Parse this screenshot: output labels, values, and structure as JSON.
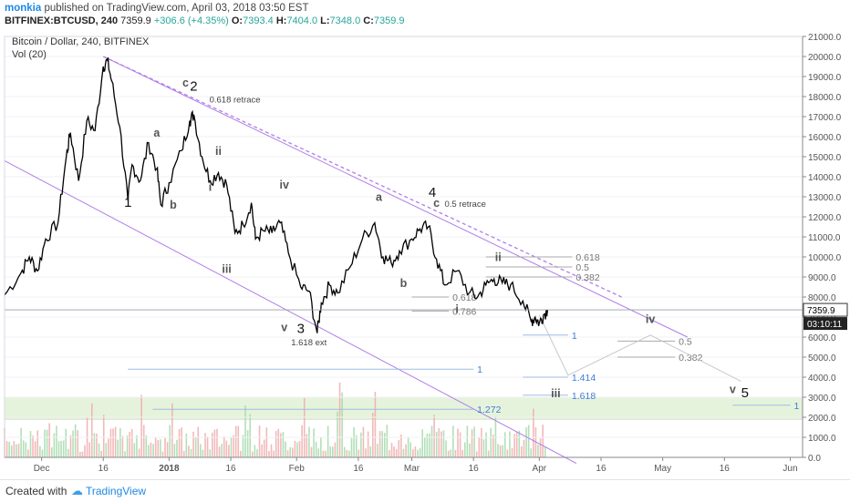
{
  "header": {
    "author": "monkia",
    "published": "published on TradingView.com, April 03, 2018 03:50 EST",
    "symbol": "BITFINEX:BTCUSD, 240",
    "last": "7359.9",
    "change": "+306.6 (+4.35%)",
    "o_label": "O:",
    "o": "7393.4",
    "h_label": "H:",
    "h": "7404.0",
    "l_label": "L:",
    "l": "7348.0",
    "c_label": "C:",
    "c": "7359.9"
  },
  "footer": {
    "created_with": "Created with",
    "brand": "TradingView"
  },
  "chart_data": {
    "type": "line",
    "title": "Bitcoin / Dollar, 240, BITFINEX",
    "subtitle": "Vol (20)",
    "ylim": [
      0,
      21000
    ],
    "yticks": [
      0,
      1000,
      2000,
      3000,
      4000,
      5000,
      6000,
      7000,
      8000,
      9000,
      10000,
      11000,
      12000,
      13000,
      14000,
      15000,
      16000,
      17000,
      18000,
      19000,
      20000,
      21000
    ],
    "ytick_labels": [
      "0.0",
      "1000.0",
      "2000.0",
      "3000.0",
      "4000.0",
      "5000.0",
      "6000.0",
      "7000.0",
      "8000.0",
      "9000.0",
      "10000.0",
      "11000.0",
      "12000.0",
      "13000.0",
      "14000.0",
      "15000.0",
      "16000.0",
      "17000.0",
      "18000.0",
      "19000.0",
      "20000.0",
      "21000.0"
    ],
    "xlim": [
      "2017-11-22",
      "2018-06-04"
    ],
    "xticks": [
      {
        "date": "2017-12-01",
        "label": "Dec",
        "bold": false
      },
      {
        "date": "2017-12-16",
        "label": "16",
        "bold": false
      },
      {
        "date": "2018-01-01",
        "label": "2018",
        "bold": true
      },
      {
        "date": "2018-01-16",
        "label": "16",
        "bold": false
      },
      {
        "date": "2018-02-01",
        "label": "Feb",
        "bold": false
      },
      {
        "date": "2018-02-16",
        "label": "16",
        "bold": false
      },
      {
        "date": "2018-03-01",
        "label": "Mar",
        "bold": false
      },
      {
        "date": "2018-03-16",
        "label": "16",
        "bold": false
      },
      {
        "date": "2018-04-01",
        "label": "Apr",
        "bold": false
      },
      {
        "date": "2018-04-16",
        "label": "16",
        "bold": false
      },
      {
        "date": "2018-05-01",
        "label": "May",
        "bold": false
      },
      {
        "date": "2018-05-16",
        "label": "16",
        "bold": false
      },
      {
        "date": "2018-06-01",
        "label": "Jun",
        "bold": false
      }
    ],
    "last_price": 7359.9,
    "last_price_label": "7359.9",
    "countdown_label": "03:10:11",
    "colors": {
      "price": "#000000",
      "channel": "#b07ee8",
      "fib": "#9e9e9e",
      "fib_blue": "#3d7dd8",
      "zone": "#e6f3dc",
      "vol_up": "#9fd8a6",
      "vol_down": "#f0a8a8"
    },
    "series": [
      {
        "points": [
          [
            "2017-11-22",
            8100
          ],
          [
            "2017-11-26",
            9200
          ],
          [
            "2017-11-28",
            10000
          ],
          [
            "2017-11-30",
            9300
          ],
          [
            "2017-12-02",
            10900
          ],
          [
            "2017-12-05",
            11700
          ],
          [
            "2017-12-07",
            15000
          ],
          [
            "2017-12-08",
            16200
          ],
          [
            "2017-12-10",
            13800
          ],
          [
            "2017-12-12",
            16800
          ],
          [
            "2017-12-14",
            16300
          ],
          [
            "2017-12-16",
            19500
          ],
          [
            "2017-12-17",
            19800
          ],
          [
            "2017-12-18",
            18800
          ],
          [
            "2017-12-20",
            16500
          ],
          [
            "2017-12-22",
            12800
          ],
          [
            "2017-12-23",
            14600
          ],
          [
            "2017-12-25",
            13800
          ],
          [
            "2017-12-27",
            15700
          ],
          [
            "2017-12-29",
            14400
          ],
          [
            "2017-12-30",
            12600
          ],
          [
            "2018-01-01",
            13700
          ],
          [
            "2018-01-04",
            15300
          ],
          [
            "2018-01-06",
            16800
          ],
          [
            "2018-01-07",
            17100
          ],
          [
            "2018-01-09",
            15000
          ],
          [
            "2018-01-11",
            13800
          ],
          [
            "2018-01-13",
            14200
          ],
          [
            "2018-01-15",
            13600
          ],
          [
            "2018-01-17",
            11200
          ],
          [
            "2018-01-19",
            11600
          ],
          [
            "2018-01-21",
            12700
          ],
          [
            "2018-01-22",
            10900
          ],
          [
            "2018-01-24",
            11300
          ],
          [
            "2018-01-26",
            11200
          ],
          [
            "2018-01-28",
            11700
          ],
          [
            "2018-01-30",
            10200
          ],
          [
            "2018-02-02",
            8500
          ],
          [
            "2018-02-04",
            8300
          ],
          [
            "2018-02-06",
            6200
          ],
          [
            "2018-02-07",
            7700
          ],
          [
            "2018-02-09",
            8600
          ],
          [
            "2018-02-11",
            8200
          ],
          [
            "2018-02-14",
            9500
          ],
          [
            "2018-02-17",
            10900
          ],
          [
            "2018-02-20",
            11700
          ],
          [
            "2018-02-22",
            10000
          ],
          [
            "2018-02-24",
            9700
          ],
          [
            "2018-02-26",
            10300
          ],
          [
            "2018-03-01",
            10900
          ],
          [
            "2018-03-03",
            11400
          ],
          [
            "2018-03-05",
            11500
          ],
          [
            "2018-03-07",
            9900
          ],
          [
            "2018-03-09",
            8600
          ],
          [
            "2018-03-12",
            9300
          ],
          [
            "2018-03-15",
            8200
          ],
          [
            "2018-03-17",
            8000
          ],
          [
            "2018-03-19",
            8600
          ],
          [
            "2018-03-21",
            8900
          ],
          [
            "2018-03-23",
            8700
          ],
          [
            "2018-03-25",
            8600
          ],
          [
            "2018-03-28",
            7800
          ],
          [
            "2018-03-30",
            6800
          ],
          [
            "2018-03-31",
            7000
          ],
          [
            "2018-04-01",
            6700
          ],
          [
            "2018-04-02",
            7100
          ],
          [
            "2018-04-03",
            7360
          ]
        ]
      }
    ],
    "channel_lines": [
      {
        "from": [
          "2017-12-16",
          20000
        ],
        "to": [
          "2018-05-07",
          6000
        ],
        "dashed": false
      },
      {
        "from": [
          "2017-11-22",
          14800
        ],
        "to": [
          "2018-04-10",
          -300
        ],
        "dashed": false
      },
      {
        "from": [
          "2017-12-16",
          20000
        ],
        "to": [
          "2018-04-21",
          8000
        ],
        "dashed": true
      }
    ],
    "projection_path": [
      [
        "2018-04-01",
        7100
      ],
      [
        "2018-04-08",
        4100
      ],
      [
        "2018-04-28",
        6100
      ],
      [
        "2018-05-20",
        3800
      ]
    ],
    "fib_levels": [
      {
        "x1": "2018-03-19",
        "x2": "2018-04-09",
        "y": 10000,
        "label": "0.618",
        "color": "gray"
      },
      {
        "x1": "2018-03-19",
        "x2": "2018-04-09",
        "y": 9500,
        "label": "0.5",
        "color": "gray"
      },
      {
        "x1": "2018-03-19",
        "x2": "2018-04-09",
        "y": 9000,
        "label": "0.382",
        "color": "gray"
      },
      {
        "x1": "2018-03-01",
        "x2": "2018-03-10",
        "y": 8000,
        "label": "0.618",
        "color": "gray"
      },
      {
        "x1": "2018-03-01",
        "x2": "2018-03-10",
        "y": 7300,
        "label": "0.786",
        "color": "gray"
      },
      {
        "x1": "2018-03-28",
        "x2": "2018-04-08",
        "y": 6100,
        "label": "1",
        "color": "blue"
      },
      {
        "x1": "2018-03-28",
        "x2": "2018-04-08",
        "y": 4000,
        "label": "1.414",
        "color": "blue"
      },
      {
        "x1": "2018-03-28",
        "x2": "2018-04-08",
        "y": 3100,
        "label": "1.618",
        "color": "blue"
      },
      {
        "x1": "2018-04-20",
        "x2": "2018-05-04",
        "y": 5800,
        "label": "0.5",
        "color": "gray"
      },
      {
        "x1": "2018-04-20",
        "x2": "2018-05-04",
        "y": 5000,
        "label": "0.382",
        "color": "gray"
      },
      {
        "x1": "2017-12-22",
        "x2": "2018-03-16",
        "y": 4400,
        "label": "1",
        "color": "blue"
      },
      {
        "x1": "2017-12-28",
        "x2": "2018-03-16",
        "y": 2400,
        "label": "1.272",
        "color": "blue"
      },
      {
        "x1": "2018-05-18",
        "x2": "2018-06-01",
        "y": 2600,
        "label": "1",
        "color": "blue"
      }
    ],
    "zone": {
      "y1": 1900,
      "y2": 3000
    },
    "annotations": [
      {
        "text": "1",
        "date": "2017-12-22",
        "y": 12500,
        "size": "large"
      },
      {
        "text": "2",
        "date": "2018-01-07",
        "y": 18300,
        "size": "large"
      },
      {
        "text": "c",
        "date": "2018-01-05",
        "y": 18500,
        "size": "small"
      },
      {
        "text": "0.618 retrace",
        "date": "2018-01-17",
        "y": 17700,
        "size": "note"
      },
      {
        "text": "a",
        "date": "2017-12-29",
        "y": 16000,
        "size": "small"
      },
      {
        "text": "b",
        "date": "2018-01-02",
        "y": 12400,
        "size": "small"
      },
      {
        "text": "i",
        "date": "2018-01-11",
        "y": 13300,
        "size": "small"
      },
      {
        "text": "ii",
        "date": "2018-01-13",
        "y": 15100,
        "size": "small"
      },
      {
        "text": "iii",
        "date": "2018-01-15",
        "y": 9200,
        "size": "small"
      },
      {
        "text": "iv",
        "date": "2018-01-29",
        "y": 13400,
        "size": "small"
      },
      {
        "text": "v",
        "date": "2018-01-29",
        "y": 6300,
        "size": "small"
      },
      {
        "text": "3",
        "date": "2018-02-02",
        "y": 6200,
        "size": "large"
      },
      {
        "text": "1.618 ext",
        "date": "2018-02-04",
        "y": 5600,
        "size": "note"
      },
      {
        "text": "a",
        "date": "2018-02-21",
        "y": 12800,
        "size": "small"
      },
      {
        "text": "b",
        "date": "2018-02-27",
        "y": 8500,
        "size": "small"
      },
      {
        "text": "4",
        "date": "2018-03-06",
        "y": 13000,
        "size": "large"
      },
      {
        "text": "c",
        "date": "2018-03-07",
        "y": 12500,
        "size": "small"
      },
      {
        "text": "0.5 retrace",
        "date": "2018-03-14",
        "y": 12500,
        "size": "note"
      },
      {
        "text": "i",
        "date": "2018-03-12",
        "y": 7200,
        "size": "small"
      },
      {
        "text": "ii",
        "date": "2018-03-22",
        "y": 9800,
        "size": "small"
      },
      {
        "text": "iii",
        "date": "2018-04-05",
        "y": 3000,
        "size": "small"
      },
      {
        "text": "iv",
        "date": "2018-04-28",
        "y": 6700,
        "size": "small"
      },
      {
        "text": "v",
        "date": "2018-05-18",
        "y": 3200,
        "size": "small"
      },
      {
        "text": "5",
        "date": "2018-05-21",
        "y": 3000,
        "size": "large"
      }
    ]
  }
}
